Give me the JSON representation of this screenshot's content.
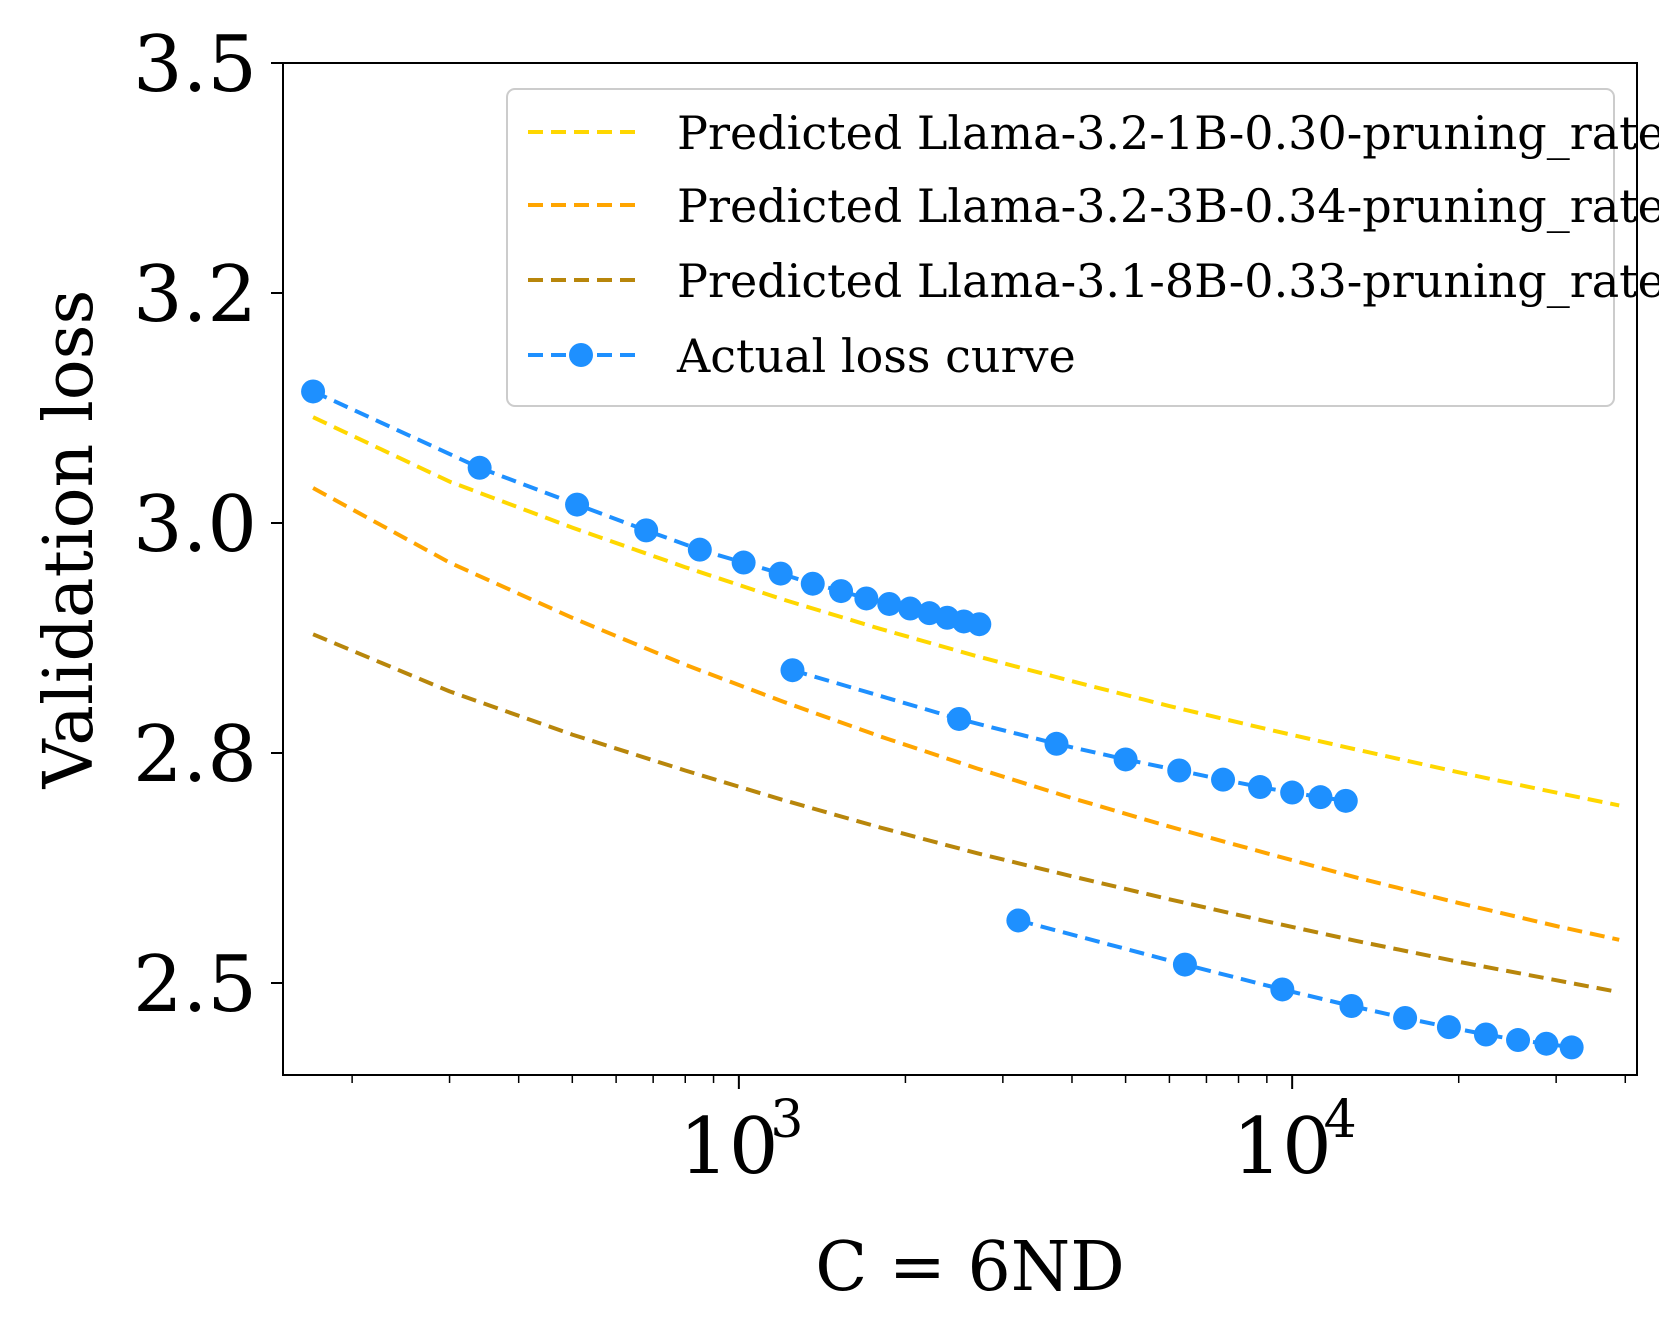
{
  "chart_data": {
    "type": "line",
    "title": "",
    "xlabel": "C = 6ND",
    "ylabel": "Validation loss",
    "xscale": "log",
    "xlim": [
      150,
      42000
    ],
    "ylim": [
      2.4,
      3.5
    ],
    "yticks": [
      "3.5",
      "3.2",
      "3.0",
      "2.8",
      "2.5"
    ],
    "ytick_values": [
      3.5,
      3.25,
      3.0,
      2.75,
      2.5
    ],
    "xticks": [
      {
        "base": "10",
        "exp": "3",
        "value": 1000
      },
      {
        "base": "10",
        "exp": "4",
        "value": 10000
      }
    ],
    "legend_position": "top-right",
    "legend": [
      {
        "label": "Predicted Llama-3.2-1B-0.30-pruning_rate",
        "color": "#FFD700",
        "style": "dashed"
      },
      {
        "label": "Predicted Llama-3.2-3B-0.34-pruning_rate",
        "color": "#FFA500",
        "style": "dashed"
      },
      {
        "label": "Predicted Llama-3.1-8B-0.33-pruning_rate",
        "color": "#B8860B",
        "style": "dashed"
      },
      {
        "label": "Actual loss curve",
        "color": "#1E90FF",
        "style": "dashed-marker"
      }
    ],
    "series": [
      {
        "name": "Predicted Llama-3.2-1B-0.30-pruning_rate",
        "color": "#FFD700",
        "kind": "predicted",
        "x": [
          170,
          300,
          500,
          800,
          1200,
          1800,
          2700,
          4000,
          6000,
          9000,
          13000,
          20000,
          30000,
          39000
        ],
        "y": [
          3.115,
          3.045,
          2.995,
          2.952,
          2.917,
          2.885,
          2.855,
          2.828,
          2.801,
          2.776,
          2.754,
          2.729,
          2.707,
          2.693
        ]
      },
      {
        "name": "Predicted Llama-3.2-3B-0.34-pruning_rate",
        "color": "#FFA500",
        "kind": "predicted",
        "x": [
          170,
          300,
          500,
          800,
          1200,
          1800,
          2700,
          4000,
          6000,
          9000,
          13000,
          20000,
          30000,
          39000
        ],
        "y": [
          3.038,
          2.957,
          2.897,
          2.846,
          2.806,
          2.768,
          2.733,
          2.701,
          2.67,
          2.641,
          2.615,
          2.587,
          2.562,
          2.547
        ]
      },
      {
        "name": "Predicted Llama-3.1-8B-0.33-pruning_rate",
        "color": "#B8860B",
        "kind": "predicted",
        "x": [
          170,
          300,
          500,
          800,
          1200,
          1800,
          2700,
          4000,
          6000,
          9000,
          13000,
          20000,
          30000,
          39000
        ],
        "y": [
          2.879,
          2.817,
          2.77,
          2.731,
          2.699,
          2.669,
          2.641,
          2.616,
          2.591,
          2.567,
          2.546,
          2.523,
          2.503,
          2.49
        ]
      },
      {
        "name": "Actual loss curve",
        "color": "#1E90FF",
        "kind": "actual",
        "x": [
          170,
          340,
          510,
          680,
          850,
          1020,
          1190,
          1360,
          1530,
          1700,
          1870,
          2040,
          2210,
          2380,
          2550,
          2720
        ],
        "y": [
          3.143,
          3.06,
          3.02,
          2.992,
          2.971,
          2.957,
          2.945,
          2.934,
          2.926,
          2.918,
          2.912,
          2.907,
          2.902,
          2.897,
          2.893,
          2.89
        ]
      },
      {
        "name": "Actual loss curve",
        "color": "#1E90FF",
        "kind": "actual",
        "x": [
          1250,
          2500,
          3750,
          5000,
          6250,
          7500,
          8750,
          10000,
          11250,
          12500
        ],
        "y": [
          2.84,
          2.787,
          2.76,
          2.743,
          2.731,
          2.721,
          2.713,
          2.707,
          2.702,
          2.698
        ]
      },
      {
        "name": "Actual loss curve",
        "color": "#1E90FF",
        "kind": "actual",
        "x": [
          3200,
          6400,
          9600,
          12800,
          16000,
          19200,
          22400,
          25600,
          28800,
          32000
        ],
        "y": [
          2.568,
          2.52,
          2.493,
          2.475,
          2.462,
          2.452,
          2.444,
          2.438,
          2.434,
          2.43
        ]
      }
    ]
  }
}
